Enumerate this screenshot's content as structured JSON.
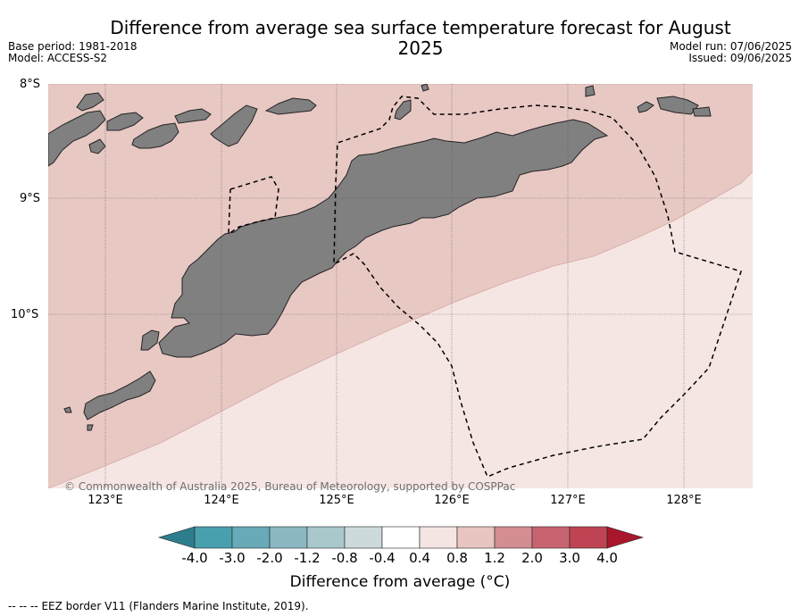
{
  "title": "Difference from average sea surface temperature forecast for August 2025",
  "meta_left": {
    "base_period": "Base period: 1981-2018",
    "model": "Model: ACCESS-S2"
  },
  "meta_right": {
    "model_run": "Model run: 07/06/2025",
    "issued": "Issued: 09/06/2025"
  },
  "map": {
    "lat_labels": [
      "8°S",
      "9°S",
      "10°S"
    ],
    "lon_labels": [
      "123°E",
      "124°E",
      "125°E",
      "126°E",
      "127°E",
      "128°E"
    ],
    "copyright": "© Commonwealth of Australia 2025, Bureau of Meteorology, supported by COSPPac",
    "colors": {
      "band_0_4_to_0_8": "#f5e6e4",
      "band_0_8_to_1_2": "#e8c8c3",
      "land": "#808080",
      "grid": "#444444"
    }
  },
  "colorbar": {
    "title": "Difference from average (°C)",
    "tick_labels": [
      "-4.0",
      "-3.0",
      "-2.0",
      "-1.2",
      "-0.8",
      "-0.4",
      "0.4",
      "0.8",
      "1.2",
      "2.0",
      "3.0",
      "4.0"
    ],
    "colors": [
      "#2e7d8c",
      "#48a0ae",
      "#68aab8",
      "#8ab8c2",
      "#a9c8cc",
      "#cddadb",
      "#ffffff",
      "#f4e4e2",
      "#e8c5c0",
      "#d48d92",
      "#c8646f",
      "#bf4453",
      "#a8172c"
    ]
  },
  "eez_note": "EEZ border V11 (Flanders Marine Institute, 2019).",
  "eez_line_symbol": "--  --  --"
}
